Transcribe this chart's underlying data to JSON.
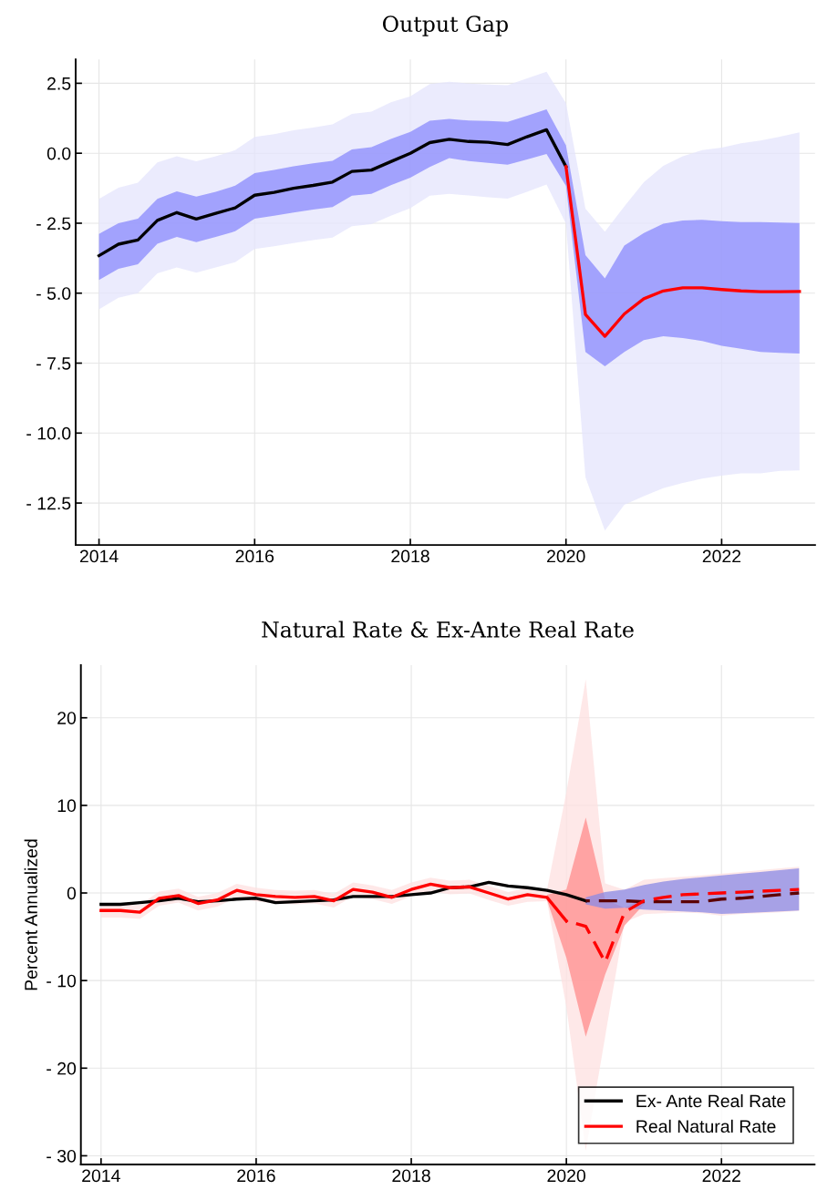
{
  "chart_data": [
    {
      "type": "line",
      "title": "Output Gap",
      "x": [
        2014.0,
        2014.25,
        2014.5,
        2014.75,
        2015.0,
        2015.25,
        2015.5,
        2015.75,
        2016.0,
        2016.25,
        2016.5,
        2016.75,
        2017.0,
        2017.25,
        2017.5,
        2017.75,
        2018.0,
        2018.25,
        2018.5,
        2018.75,
        2019.0,
        2019.25,
        2019.5,
        2019.75,
        2020.0,
        2020.25,
        2020.5,
        2020.75,
        2021.0,
        2021.25,
        2021.5,
        2021.75,
        2022.0,
        2022.25,
        2022.5,
        2022.75,
        2023.0
      ],
      "xlim": [
        2013.7,
        2023.2
      ],
      "xticks": [
        2014,
        2016,
        2018,
        2020,
        2022
      ],
      "ylim": [
        -14.0,
        3.35
      ],
      "yticks": [
        2.5,
        {
          "value": 0,
          "label": "0.0"
        },
        {
          "value": -2.5,
          "label": "- 2.5"
        },
        {
          "value": -5,
          "label": "- 5.0"
        },
        {
          "value": -7.5,
          "label": "- 7.5"
        },
        {
          "value": -10,
          "label": "- 10.0"
        },
        {
          "value": -12.5,
          "label": "- 12.5"
        }
      ],
      "grid": true,
      "legend": false,
      "series": [
        {
          "color": "#e4e4fc",
          "values": [
            null,
            null,
            null,
            null,
            null,
            null,
            null,
            null,
            null,
            null,
            null,
            null,
            null,
            null,
            null,
            null,
            null,
            null,
            null,
            null,
            null,
            null,
            null,
            null,
            null,
            null,
            null,
            null,
            null,
            null,
            null,
            null,
            null,
            null,
            null,
            null,
            null
          ],
          "upper": [
            -1.63,
            -1.23,
            -1.05,
            -0.33,
            -0.11,
            -0.29,
            -0.11,
            0.11,
            0.58,
            0.68,
            0.82,
            0.92,
            1.03,
            1.41,
            1.49,
            1.82,
            2.03,
            2.47,
            2.55,
            2.49,
            2.46,
            2.43,
            2.68,
            2.91,
            1.79,
            -1.98,
            -2.8,
            -1.9,
            -1.04,
            -0.45,
            -0.11,
            0.11,
            0.2,
            0.36,
            0.45,
            0.59,
            0.75
          ],
          "lower": [
            -5.58,
            -5.16,
            -5.0,
            -4.29,
            -4.08,
            -4.27,
            -4.08,
            -3.89,
            -3.42,
            -3.32,
            -3.21,
            -3.1,
            -3.01,
            -2.61,
            -2.53,
            -2.23,
            -1.96,
            -1.52,
            -1.45,
            -1.51,
            -1.57,
            -1.62,
            -1.38,
            -1.12,
            -2.52,
            -11.58,
            -13.48,
            -12.56,
            -12.25,
            -11.97,
            -11.78,
            -11.63,
            -11.52,
            -11.44,
            -11.44,
            -11.35,
            -11.33
          ]
        },
        {
          "color": "#8a8afc",
          "values": [
            null,
            null,
            null,
            null,
            null,
            null,
            null,
            null,
            null,
            null,
            null,
            null,
            null,
            null,
            null,
            null,
            null,
            null,
            null,
            null,
            null,
            null,
            null,
            null,
            null,
            null,
            null,
            null,
            null,
            null,
            null,
            null,
            null,
            null,
            null,
            null,
            null
          ],
          "upper": [
            -2.88,
            -2.5,
            -2.34,
            -1.63,
            -1.36,
            -1.55,
            -1.38,
            -1.16,
            -0.71,
            -0.6,
            -0.47,
            -0.36,
            -0.27,
            0.14,
            0.22,
            0.51,
            0.76,
            1.16,
            1.23,
            1.17,
            1.15,
            1.12,
            1.34,
            1.57,
            0.28,
            -3.64,
            -4.47,
            -3.3,
            -2.85,
            -2.52,
            -2.4,
            -2.38,
            -2.43,
            -2.46,
            -2.46,
            -2.48,
            -2.49
          ],
          "lower": [
            -4.53,
            -4.13,
            -3.97,
            -3.23,
            -2.99,
            -3.18,
            -2.99,
            -2.79,
            -2.34,
            -2.23,
            -2.12,
            -2.01,
            -1.92,
            -1.52,
            -1.45,
            -1.14,
            -0.87,
            -0.49,
            -0.17,
            -0.28,
            -0.34,
            -0.41,
            -0.22,
            -0.03,
            -1.17,
            -7.1,
            -7.61,
            -7.1,
            -6.68,
            -6.54,
            -6.6,
            -6.71,
            -6.88,
            -6.99,
            -7.1,
            -7.13,
            -7.16
          ]
        },
        {
          "color": "#000000",
          "line_style": "solid",
          "values": [
            -3.66,
            -3.25,
            -3.1,
            -2.4,
            -2.12,
            -2.35,
            -2.15,
            -1.95,
            -1.5,
            -1.4,
            -1.25,
            -1.15,
            -1.03,
            -0.65,
            -0.6,
            -0.3,
            0.0,
            0.38,
            0.5,
            0.42,
            0.39,
            0.31,
            0.59,
            0.84,
            -0.48,
            null,
            null,
            null,
            null,
            null,
            null,
            null,
            null,
            null,
            null,
            null,
            null
          ]
        },
        {
          "color": "#ff0000",
          "line_style": "solid",
          "values": [
            null,
            null,
            null,
            null,
            null,
            null,
            null,
            null,
            null,
            null,
            null,
            null,
            null,
            null,
            null,
            null,
            null,
            null,
            null,
            null,
            null,
            null,
            null,
            null,
            -0.48,
            -5.76,
            -6.54,
            -5.74,
            -5.2,
            -4.92,
            -4.81,
            -4.81,
            -4.87,
            -4.92,
            -4.95,
            -4.95,
            -4.94
          ]
        }
      ]
    },
    {
      "type": "line",
      "title": "Natural Rate & Ex-Ante Real Rate",
      "ylabel": "Percent Annualized",
      "x": [
        2014.0,
        2014.25,
        2014.5,
        2014.75,
        2015.0,
        2015.25,
        2015.5,
        2015.75,
        2016.0,
        2016.25,
        2016.5,
        2016.75,
        2017.0,
        2017.25,
        2017.5,
        2017.75,
        2018.0,
        2018.25,
        2018.5,
        2018.75,
        2019.0,
        2019.25,
        2019.5,
        2019.75,
        2020.0,
        2020.25,
        2020.5,
        2020.75,
        2021.0,
        2021.25,
        2021.5,
        2021.75,
        2022.0,
        2022.25,
        2022.5,
        2022.75,
        2023.0
      ],
      "xlim": [
        2013.74,
        2023.2
      ],
      "xticks": [
        2014,
        2016,
        2018,
        2020,
        2022
      ],
      "ylim": [
        -31.0,
        26.0
      ],
      "yticks": [
        20,
        10,
        0,
        {
          "value": -10,
          "label": "- 10"
        },
        {
          "value": -20,
          "label": "- 20"
        },
        {
          "value": -30,
          "label": "- 30"
        }
      ],
      "grid": true,
      "legend": "bottom right",
      "series": [
        {
          "color": "#fde0e0",
          "values": [
            null,
            null,
            null,
            null,
            null,
            null,
            null,
            null,
            null,
            null,
            null,
            null,
            null,
            null,
            null,
            null,
            null,
            null,
            null,
            null,
            null,
            null,
            null,
            null,
            null,
            null,
            null,
            null,
            null,
            null,
            null,
            null,
            null,
            null,
            null,
            null,
            null
          ],
          "upper": [
            -1.2,
            -1.2,
            -1.35,
            0.15,
            0.5,
            -0.45,
            0.0,
            1.05,
            0.6,
            0.35,
            0.25,
            0.35,
            -0.1,
            1.2,
            0.85,
            0.35,
            1.2,
            1.75,
            1.4,
            1.5,
            0.8,
            0.1,
            0.6,
            0.37,
            11.5,
            24.4,
            1.1,
            0.37,
            1.5,
            1.7,
            1.86,
            2.0,
            2.2,
            2.4,
            2.6,
            2.8,
            2.98
          ],
          "lower": [
            -2.8,
            -2.8,
            -2.95,
            -1.45,
            -1.1,
            -2.0,
            -1.55,
            -0.5,
            -0.95,
            -1.2,
            -1.3,
            -1.2,
            -1.65,
            -0.4,
            -0.7,
            -1.25,
            -0.4,
            0.2,
            -0.15,
            -0.05,
            -0.8,
            -1.45,
            -1.0,
            -0.93,
            -13.0,
            -29.4,
            -16.4,
            -3.35,
            -2.42,
            -2.3,
            -2.23,
            -2.3,
            -2.6,
            -2.4,
            -2.3,
            -2.2,
            -2.05
          ]
        },
        {
          "color": "#ff8c8c",
          "values": [
            null,
            null,
            null,
            null,
            null,
            null,
            null,
            null,
            null,
            null,
            null,
            null,
            null,
            null,
            null,
            null,
            null,
            null,
            null,
            null,
            null,
            null,
            null,
            null,
            null,
            null,
            null,
            null,
            null,
            null,
            null,
            null,
            null,
            null,
            null,
            null,
            null
          ],
          "upper": [
            null,
            null,
            null,
            null,
            null,
            null,
            null,
            null,
            null,
            null,
            null,
            null,
            null,
            null,
            null,
            null,
            null,
            null,
            null,
            null,
            null,
            null,
            null,
            -0.2,
            0.4,
            8.6,
            -0.74,
            -1.68,
            -0.6,
            null,
            null,
            null,
            null,
            null,
            null,
            null,
            null
          ],
          "lower": [
            null,
            null,
            null,
            null,
            null,
            null,
            null,
            null,
            null,
            null,
            null,
            null,
            null,
            null,
            null,
            null,
            null,
            null,
            null,
            null,
            null,
            null,
            null,
            -0.8,
            -7.4,
            -16.4,
            -9.3,
            -3.72,
            -1.3,
            null,
            null,
            null,
            null,
            null,
            null,
            null,
            null
          ]
        },
        {
          "color": "#8a8ae6",
          "values": [
            null,
            null,
            null,
            null,
            null,
            null,
            null,
            null,
            null,
            null,
            null,
            null,
            null,
            null,
            null,
            null,
            null,
            null,
            null,
            null,
            null,
            null,
            null,
            null,
            null,
            null,
            null,
            null,
            null,
            null,
            null,
            null,
            null,
            null,
            null,
            null,
            null
          ],
          "upper": [
            null,
            null,
            null,
            null,
            null,
            null,
            null,
            null,
            null,
            null,
            null,
            null,
            null,
            null,
            null,
            null,
            null,
            null,
            null,
            null,
            null,
            null,
            null,
            null,
            null,
            -0.5,
            0.1,
            0.4,
            0.9,
            1.3,
            1.6,
            1.8,
            2.0,
            2.2,
            2.4,
            2.6,
            2.8
          ],
          "lower": [
            null,
            null,
            null,
            null,
            null,
            null,
            null,
            null,
            null,
            null,
            null,
            null,
            null,
            null,
            null,
            null,
            null,
            null,
            null,
            null,
            null,
            null,
            null,
            null,
            null,
            -1.3,
            -1.8,
            -1.7,
            -1.9,
            -2.0,
            -2.1,
            -2.2,
            -2.4,
            -2.3,
            -2.2,
            -2.1,
            -2.0
          ]
        },
        {
          "name": "Ex- Ante Real Rate",
          "color": "#000000",
          "line_style": "solid",
          "values": [
            -1.3,
            -1.3,
            -1.1,
            -0.9,
            -0.6,
            -1.0,
            -0.9,
            -0.7,
            -0.6,
            -1.1,
            -1.0,
            -0.9,
            -0.8,
            -0.4,
            -0.4,
            -0.4,
            -0.2,
            0.0,
            0.6,
            0.7,
            1.2,
            0.8,
            0.6,
            0.3,
            -0.2,
            -0.9,
            null,
            null,
            null,
            null,
            null,
            null,
            null,
            null,
            null,
            null,
            null
          ]
        },
        {
          "name": "Real Natural Rate",
          "color": "#ff0000",
          "line_style": "solid",
          "values": [
            -2.0,
            -2.0,
            -2.2,
            -0.6,
            -0.3,
            -1.2,
            -0.8,
            0.3,
            -0.2,
            -0.4,
            -0.5,
            -0.4,
            -0.9,
            0.4,
            0.1,
            -0.5,
            0.4,
            1.0,
            0.6,
            0.7,
            0.0,
            -0.7,
            -0.2,
            -0.5,
            -3.2,
            null,
            null,
            null,
            null,
            null,
            null,
            null,
            null,
            null,
            null,
            null,
            null
          ]
        },
        {
          "color": "#5c0000",
          "line_style": "dashed",
          "values": [
            null,
            null,
            null,
            null,
            null,
            null,
            null,
            null,
            null,
            null,
            null,
            null,
            null,
            null,
            null,
            null,
            null,
            null,
            null,
            null,
            null,
            null,
            null,
            null,
            null,
            -0.9,
            -0.9,
            -0.9,
            -1.0,
            -1.0,
            -1.0,
            -1.0,
            -0.7,
            -0.6,
            -0.4,
            -0.2,
            0.0
          ]
        },
        {
          "color": "#ff0000",
          "line_style": "dashed",
          "values": [
            null,
            null,
            null,
            null,
            null,
            null,
            null,
            null,
            null,
            null,
            null,
            null,
            null,
            null,
            null,
            null,
            null,
            null,
            null,
            null,
            null,
            null,
            null,
            null,
            -3.2,
            -3.8,
            -7.9,
            -2.2,
            -0.9,
            -0.5,
            -0.2,
            -0.1,
            0.0,
            0.1,
            0.2,
            0.3,
            0.4
          ]
        }
      ]
    }
  ]
}
